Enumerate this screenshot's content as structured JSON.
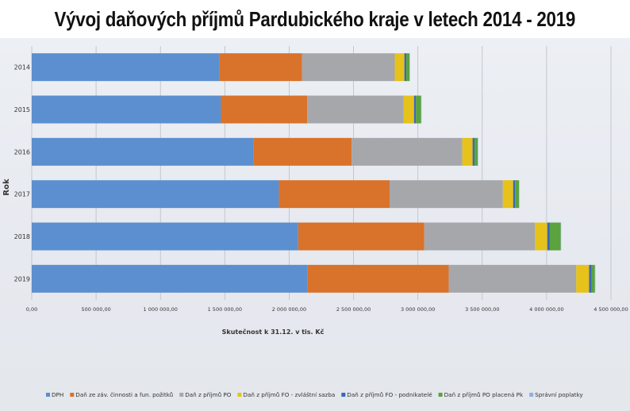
{
  "page_title": "Vývoj daňových příjmů Pardubického kraje v letech 2014 - 2019",
  "chart_data": {
    "type": "bar",
    "orientation": "horizontal",
    "stacked": true,
    "ylabel": "Rok",
    "xlabel": "Skutečnost k 31.12. v tis. Kč",
    "categories": [
      "2014",
      "2015",
      "2016",
      "2017",
      "2018",
      "2019"
    ],
    "xlim": [
      0,
      4500000
    ],
    "xticks": [
      "0,00",
      "500 000,00",
      "1 000 000,00",
      "1 500 000,00",
      "2 000 000,00",
      "2 500 000,00",
      "3 000 000,00",
      "3 500 000,00",
      "4 000 000,00",
      "4 500 000,00"
    ],
    "grid": true,
    "legend_position": "bottom",
    "series": [
      {
        "name": "DPH",
        "color": "#5b8fd0",
        "values": [
          1460000,
          1470000,
          1725000,
          1920000,
          2070000,
          2140000
        ]
      },
      {
        "name": "Daň ze záv. činnosti a fun. požitků",
        "color": "#d9722a",
        "values": [
          640000,
          670000,
          760000,
          860000,
          980000,
          1100000
        ]
      },
      {
        "name": "Daň z příjmů PO",
        "color": "#a5a7ab",
        "values": [
          720000,
          750000,
          860000,
          880000,
          860000,
          990000
        ]
      },
      {
        "name": "Daň z příjmů FO - zvláštní sazba",
        "color": "#e6c21b",
        "values": [
          75000,
          80000,
          80000,
          80000,
          95000,
          100000
        ]
      },
      {
        "name": "Daň z příjmů FO - podnikatelé",
        "color": "#3c67b8",
        "values": [
          15000,
          15000,
          15000,
          15000,
          20000,
          20000
        ]
      },
      {
        "name": "Daň z příjmů PO placená Pk",
        "color": "#5aa33e",
        "values": [
          25000,
          40000,
          25000,
          30000,
          85000,
          25000
        ]
      },
      {
        "name": "Správní poplatky",
        "color": "#8fb0dc",
        "values": [
          2000,
          2000,
          2000,
          2000,
          2000,
          2000
        ]
      }
    ]
  }
}
